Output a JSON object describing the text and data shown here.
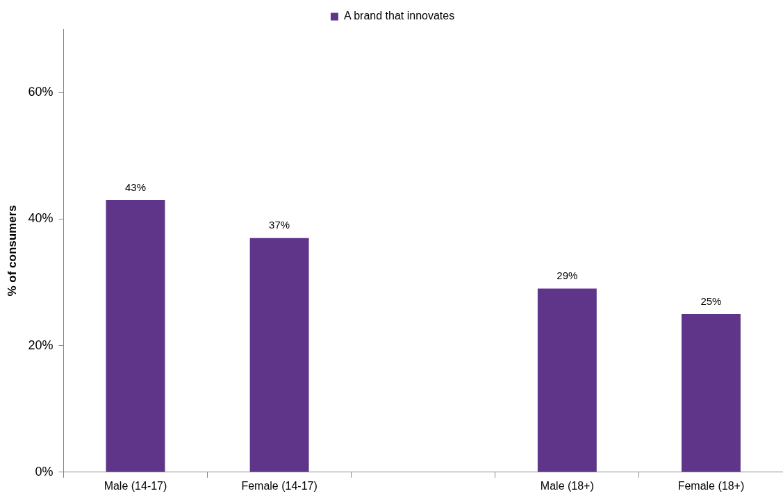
{
  "chart_data": {
    "type": "bar",
    "ylabel": "% of consumers",
    "categories": [
      "Male (14-17)",
      "Female (14-17)",
      null,
      "Male (18+)",
      "Female (18+)"
    ],
    "series": [
      {
        "name": "A brand that innovates",
        "color": "#5e3589",
        "values": [
          43,
          37,
          null,
          29,
          25
        ],
        "value_labels": [
          "43%",
          "37%",
          null,
          "29%",
          "25%"
        ]
      }
    ],
    "ylim": [
      0,
      70
    ],
    "yticks": [
      {
        "value": 0,
        "label": "0%"
      },
      {
        "value": 20,
        "label": "20%"
      },
      {
        "value": 40,
        "label": "40%"
      },
      {
        "value": 60,
        "label": "60%"
      }
    ],
    "grid": false,
    "legend": "top"
  }
}
